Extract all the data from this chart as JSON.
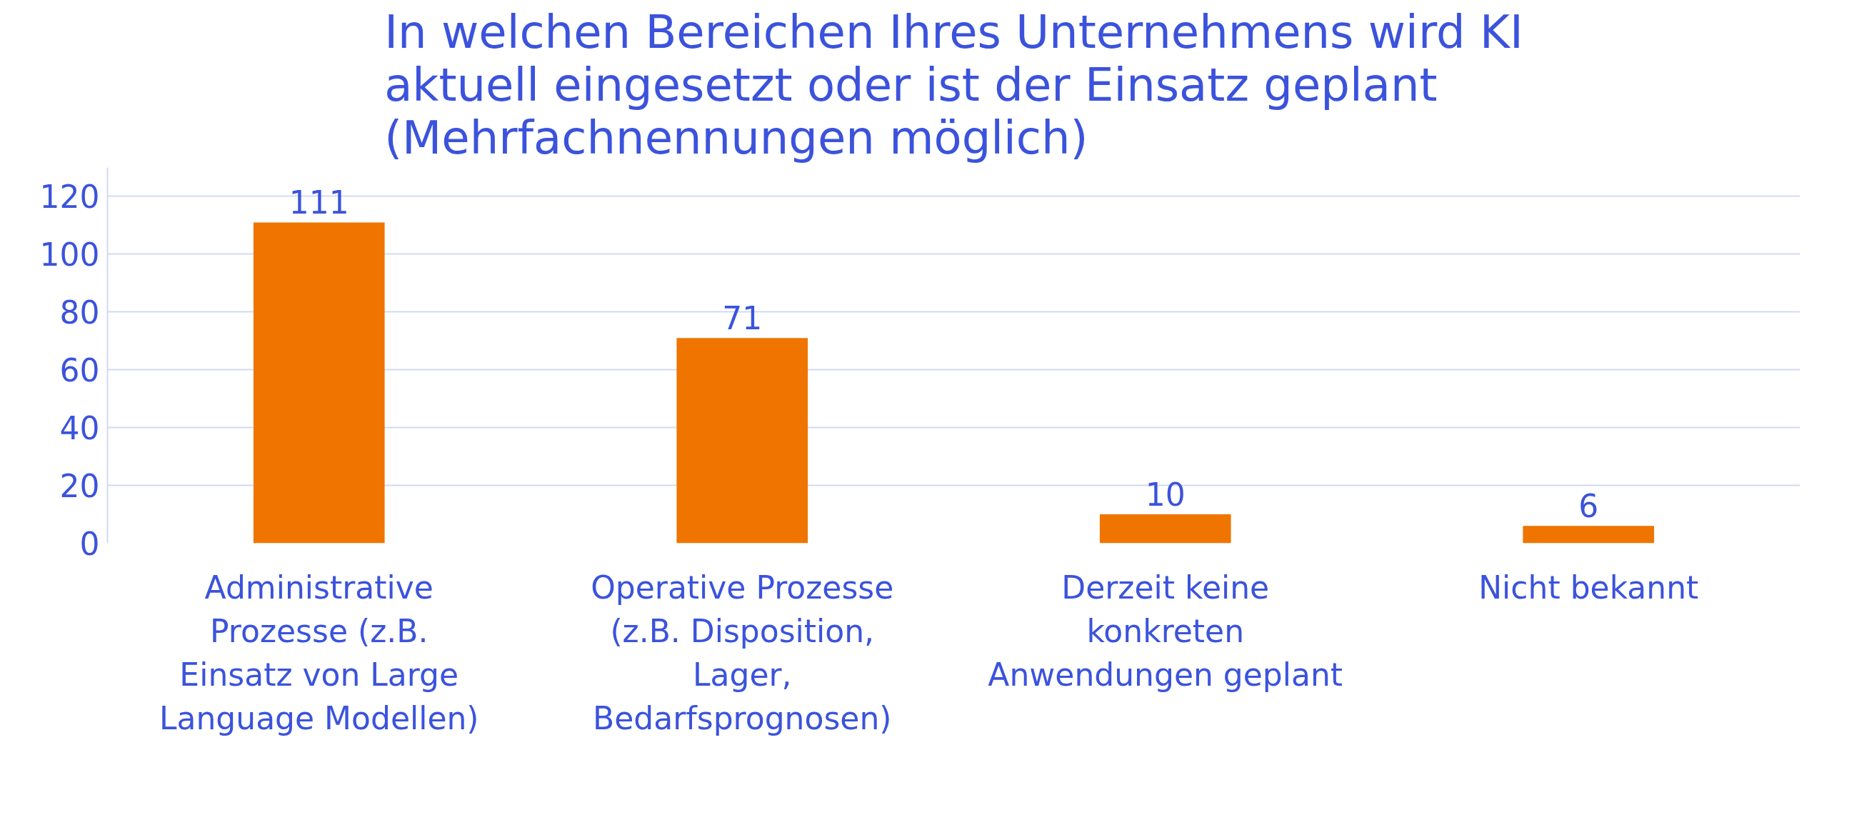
{
  "chart_data": {
    "type": "bar",
    "title": "In welchen Bereichen Ihres Unternehmens wird KI aktuell eingesetzt oder ist der Einsatz geplant (Mehrfachnennungen möglich)",
    "categories": [
      "Administrative Prozesse (z.B. Einsatz von Large Language Modellen)",
      "Operative Prozesse (z.B. Disposition, Lager, Bedarfsprognosen)",
      "Derzeit keine konkreten Anwendungen geplant",
      "Nicht bekannt"
    ],
    "values": [
      111,
      71,
      10,
      6
    ],
    "color": "#ef7500",
    "ylim": [
      0,
      130
    ],
    "yticks": [
      0,
      20,
      40,
      60,
      80,
      100,
      120
    ],
    "grid": "y",
    "data_labels": true
  }
}
